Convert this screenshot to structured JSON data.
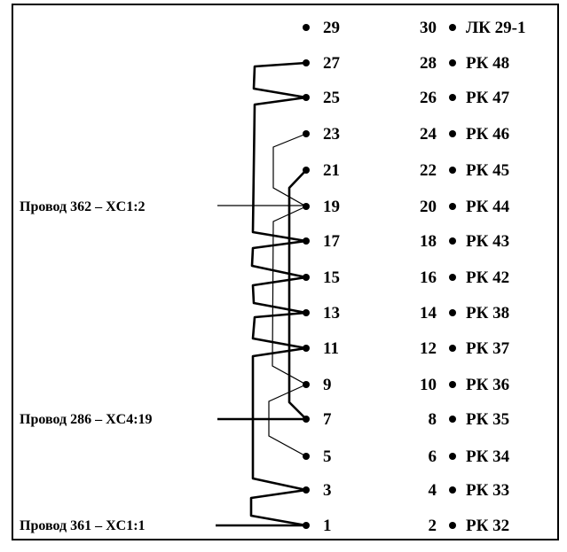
{
  "connector": {
    "left_pins": [
      "29",
      "27",
      "25",
      "23",
      "21",
      "19",
      "17",
      "15",
      "13",
      "11",
      "9",
      "7",
      "5",
      "3",
      "1"
    ],
    "right_pins": [
      {
        "pin": "30",
        "label": "ЛК 29-1"
      },
      {
        "pin": "28",
        "label": "РК 48"
      },
      {
        "pin": "26",
        "label": "РК 47"
      },
      {
        "pin": "24",
        "label": "РК 46"
      },
      {
        "pin": "22",
        "label": "РК 45"
      },
      {
        "pin": "20",
        "label": "РК 44"
      },
      {
        "pin": "18",
        "label": "РК 43"
      },
      {
        "pin": "16",
        "label": "РК 42"
      },
      {
        "pin": "14",
        "label": "РК 38"
      },
      {
        "pin": "12",
        "label": "РК 37"
      },
      {
        "pin": "10",
        "label": "РК 36"
      },
      {
        "pin": "8",
        "label": "РК 35"
      },
      {
        "pin": "6",
        "label": "РК 34"
      },
      {
        "pin": "4",
        "label": "РК 33"
      },
      {
        "pin": "2",
        "label": "РК 32"
      }
    ]
  },
  "wires": [
    {
      "label": "Провод 362 – XC1:2",
      "pin": "19"
    },
    {
      "label": "Провод 286 – XC4:19",
      "pin": "7"
    },
    {
      "label": "Провод 361 – XC1:1",
      "pin": "1"
    }
  ]
}
